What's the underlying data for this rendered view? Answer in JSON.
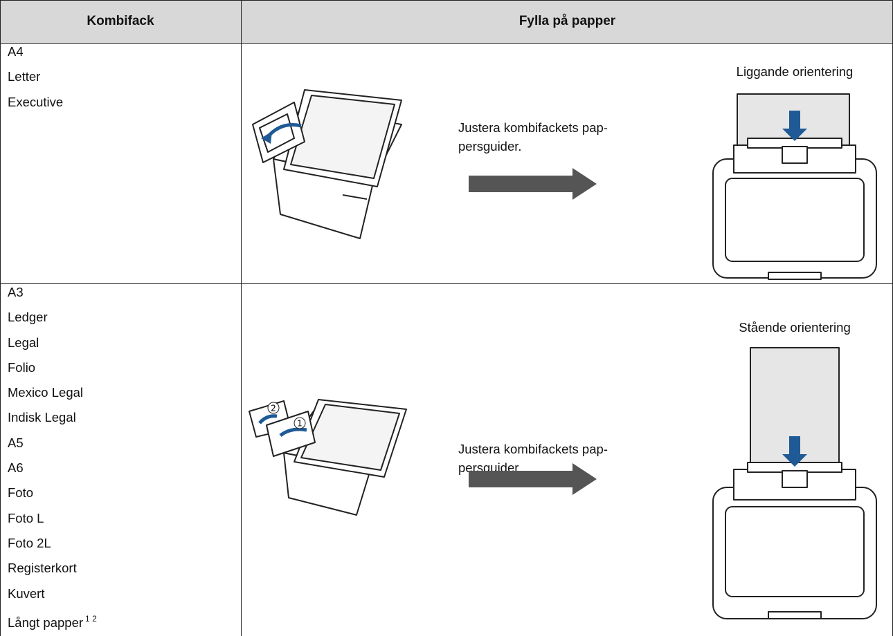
{
  "table": {
    "headers": [
      "Kombifack",
      "Fylla på papper"
    ],
    "rows": [
      {
        "sizes": [
          "A4",
          "Letter",
          "Executive"
        ],
        "instruction": [
          "Justera kombifackets pap-",
          "persguider."
        ],
        "orientation": "Liggande orientering"
      },
      {
        "sizes": [
          "A3",
          "Ledger",
          "Legal",
          "Folio",
          "Mexico Legal",
          "Indisk Legal",
          "A5",
          "A6",
          "Foto",
          "Foto L",
          "Foto 2L",
          "Registerkort",
          "Kuvert",
          "Långt papper"
        ],
        "footnotes": [
          "1",
          "2"
        ],
        "callouts": [
          "2",
          "1"
        ],
        "instruction": [
          "Justera kombifackets pap-",
          "persguider."
        ],
        "orientation": "Stående orientering"
      }
    ]
  }
}
